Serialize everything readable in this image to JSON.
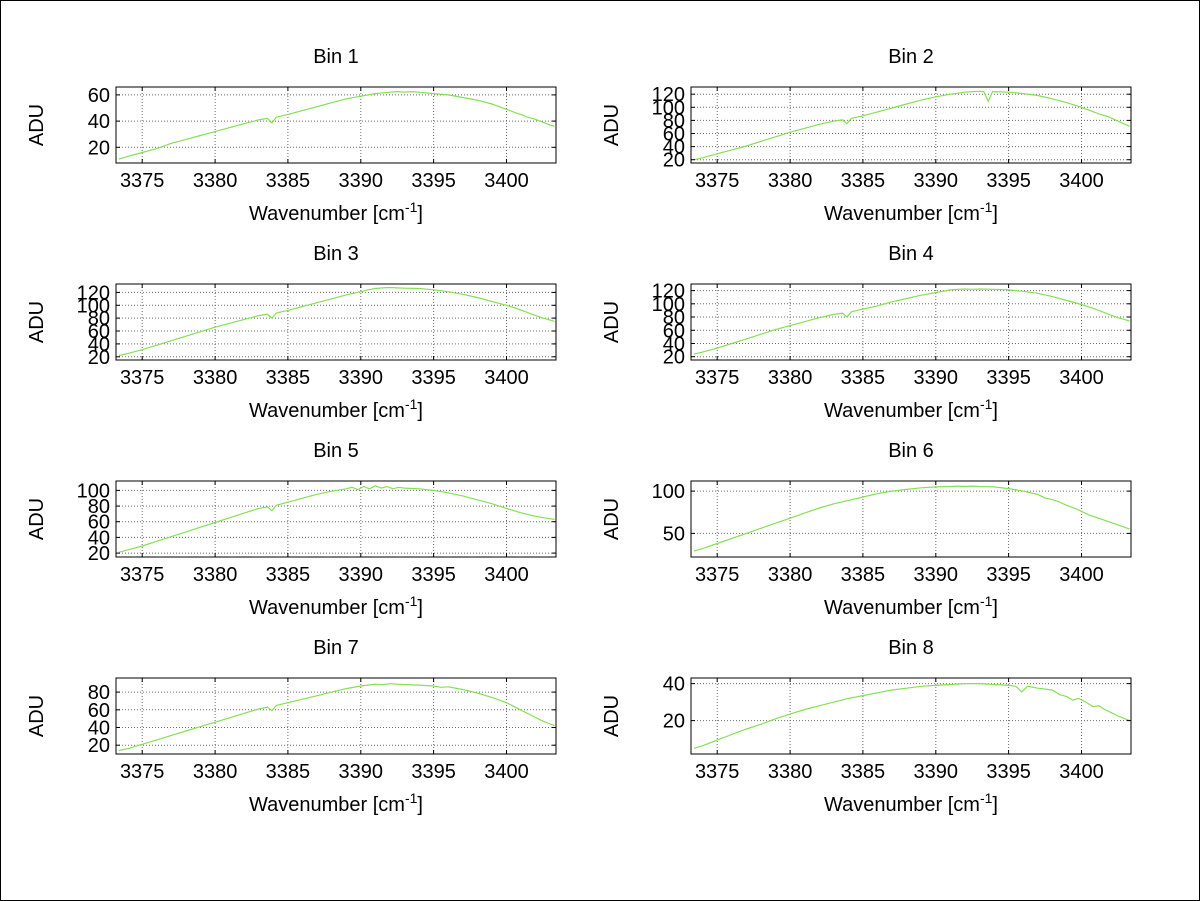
{
  "figure": {
    "background": "#ffffff",
    "border_color": "#000000",
    "axis_color": "#000000",
    "grid_color": "#6b6b6b",
    "line_color": "#86df55",
    "text_color": "#000000"
  },
  "chart_data": [
    {
      "type": "line",
      "title": "Bin 1",
      "ylabel": "ADU",
      "xlabel": "Wavenumber [cm⁻¹]",
      "xlabel_prefix": "Wavenumber [cm",
      "xlabel_sup": "-1",
      "xlabel_suffix": "]",
      "xlim": [
        3373.2,
        3403.4
      ],
      "ylim": [
        8,
        66
      ],
      "xticks": [
        3375,
        3380,
        3385,
        3390,
        3395,
        3400
      ],
      "yticks": [
        20,
        40,
        60
      ],
      "grid": true,
      "x": [
        3373.4,
        3374,
        3375,
        3376,
        3377,
        3378,
        3379,
        3380,
        3381,
        3382,
        3383,
        3383.6,
        3383.9,
        3384.2,
        3385,
        3386,
        3387,
        3388,
        3389,
        3390,
        3390.5,
        3391,
        3391.5,
        3392,
        3392.5,
        3393,
        3393.5,
        3394,
        3394.5,
        3395,
        3396,
        3397,
        3398,
        3399,
        3400,
        3400.7,
        3401,
        3401.4,
        3401.8,
        3402.3,
        3403,
        3403.3
      ],
      "y": [
        11,
        13,
        16,
        19,
        23,
        26,
        29,
        32,
        35,
        38,
        41,
        42,
        38.5,
        43,
        45,
        48,
        51,
        54,
        57,
        59,
        60,
        61,
        61.5,
        62,
        62.5,
        62,
        62.5,
        62,
        61.5,
        61,
        60,
        58,
        56,
        53,
        49,
        46,
        45,
        43,
        42,
        40,
        37,
        36
      ]
    },
    {
      "type": "line",
      "title": "Bin 2",
      "ylabel": "ADU",
      "xlabel": "Wavenumber [cm⁻¹]",
      "xlabel_prefix": "Wavenumber [cm",
      "xlabel_sup": "-1",
      "xlabel_suffix": "]",
      "xlim": [
        3373.2,
        3403.4
      ],
      "ylim": [
        15,
        131
      ],
      "xticks": [
        3375,
        3380,
        3385,
        3390,
        3395,
        3400
      ],
      "yticks": [
        20,
        40,
        60,
        80,
        100,
        120
      ],
      "grid": true,
      "x": [
        3373.4,
        3374,
        3375,
        3376,
        3377,
        3378,
        3379,
        3380,
        3381,
        3382,
        3383,
        3383.6,
        3383.9,
        3384.2,
        3385,
        3386,
        3387,
        3388,
        3389,
        3390,
        3391,
        3392,
        3392.5,
        3393,
        3393.3,
        3393.6,
        3393.9,
        3394.5,
        3395,
        3396,
        3397,
        3398,
        3399,
        3400,
        3400.7,
        3401.2,
        3401.8,
        3402.4,
        3403,
        3403.3
      ],
      "y": [
        20,
        23,
        29,
        35,
        41,
        48,
        55,
        62,
        68,
        74,
        79,
        81,
        75,
        83,
        87,
        93,
        99,
        105,
        111,
        116,
        120,
        123,
        124,
        124.5,
        124,
        109,
        124,
        123.5,
        123,
        121,
        118,
        113,
        107,
        100,
        94,
        90,
        86,
        80,
        74,
        71
      ]
    },
    {
      "type": "line",
      "title": "Bin 3",
      "ylabel": "ADU",
      "xlabel": "Wavenumber [cm⁻¹]",
      "xlabel_prefix": "Wavenumber [cm",
      "xlabel_sup": "-1",
      "xlabel_suffix": "]",
      "xlim": [
        3373.2,
        3403.4
      ],
      "ylim": [
        15,
        133
      ],
      "xticks": [
        3375,
        3380,
        3385,
        3390,
        3395,
        3400
      ],
      "yticks": [
        20,
        40,
        60,
        80,
        100,
        120
      ],
      "grid": true,
      "x": [
        3373.4,
        3374,
        3375,
        3376,
        3377,
        3378,
        3379,
        3380,
        3381,
        3382,
        3383,
        3383.6,
        3383.9,
        3384.2,
        3385,
        3386,
        3387,
        3388,
        3389,
        3390,
        3390.5,
        3391,
        3391.5,
        3392,
        3392.5,
        3393,
        3394,
        3395,
        3396,
        3397,
        3398,
        3399,
        3400,
        3400.7,
        3401.3,
        3401.9,
        3402.5,
        3403,
        3403.3
      ],
      "y": [
        22,
        25,
        31,
        38,
        45,
        52,
        59,
        66,
        72,
        78,
        84,
        86,
        80,
        88,
        92,
        98,
        104,
        110,
        116,
        121,
        124,
        126,
        127,
        127.5,
        127,
        126.5,
        126,
        124,
        121,
        117,
        112,
        106,
        100,
        95,
        90,
        85,
        80,
        77,
        75
      ]
    },
    {
      "type": "line",
      "title": "Bin 4",
      "ylabel": "ADU",
      "xlabel": "Wavenumber [cm⁻¹]",
      "xlabel_prefix": "Wavenumber [cm",
      "xlabel_sup": "-1",
      "xlabel_suffix": "]",
      "xlim": [
        3373.2,
        3403.4
      ],
      "ylim": [
        15,
        130
      ],
      "xticks": [
        3375,
        3380,
        3385,
        3390,
        3395,
        3400
      ],
      "yticks": [
        20,
        40,
        60,
        80,
        100,
        120
      ],
      "grid": true,
      "x": [
        3373.4,
        3374,
        3375,
        3376,
        3377,
        3378,
        3379,
        3380,
        3381,
        3382,
        3383,
        3383.6,
        3383.9,
        3384.2,
        3385,
        3386,
        3387,
        3388,
        3389,
        3390,
        3390.5,
        3391,
        3391.5,
        3392,
        3392.5,
        3393,
        3394,
        3395,
        3396,
        3397,
        3398,
        3399,
        3400,
        3400.7,
        3401.3,
        3401.9,
        3402.5,
        3403,
        3403.3
      ],
      "y": [
        24,
        27,
        33,
        40,
        47,
        54,
        61,
        67,
        73,
        79,
        84,
        86,
        80,
        88,
        92,
        97,
        103,
        108,
        113,
        117,
        119,
        121,
        122,
        122.5,
        122,
        122.5,
        122,
        121,
        119,
        116,
        111,
        105,
        99,
        94,
        89,
        84,
        79,
        76,
        74
      ]
    },
    {
      "type": "line",
      "title": "Bin 5",
      "ylabel": "ADU",
      "xlabel": "Wavenumber [cm⁻¹]",
      "xlabel_prefix": "Wavenumber [cm",
      "xlabel_sup": "-1",
      "xlabel_suffix": "]",
      "xlim": [
        3373.2,
        3403.4
      ],
      "ylim": [
        15,
        112
      ],
      "xticks": [
        3375,
        3380,
        3385,
        3390,
        3395,
        3400
      ],
      "yticks": [
        20,
        40,
        60,
        80,
        100
      ],
      "grid": true,
      "x": [
        3373.4,
        3374,
        3375,
        3376,
        3377,
        3378,
        3379,
        3380,
        3381,
        3382,
        3383,
        3383.6,
        3383.9,
        3384.2,
        3385,
        3386,
        3387,
        3388,
        3389,
        3389.4,
        3389.8,
        3390.2,
        3390.6,
        3391,
        3391.4,
        3391.8,
        3392.2,
        3392.6,
        3393,
        3394,
        3395,
        3396,
        3397,
        3398,
        3399,
        3400,
        3400.7,
        3401.3,
        3402,
        3402.6,
        3403.3
      ],
      "y": [
        21,
        24,
        29,
        35,
        41,
        47,
        53,
        59,
        65,
        71,
        77,
        79,
        74,
        81,
        85,
        90,
        95,
        99,
        102,
        104,
        101,
        105,
        102,
        106,
        103,
        105,
        102,
        104,
        103,
        102,
        100,
        97,
        93,
        88,
        83,
        77,
        73,
        70,
        67,
        65,
        63
      ]
    },
    {
      "type": "line",
      "title": "Bin 6",
      "ylabel": "ADU",
      "xlabel": "Wavenumber [cm⁻¹]",
      "xlabel_prefix": "Wavenumber [cm",
      "xlabel_sup": "-1",
      "xlabel_suffix": "]",
      "xlim": [
        3373.2,
        3403.4
      ],
      "ylim": [
        22,
        112
      ],
      "xticks": [
        3375,
        3380,
        3385,
        3390,
        3395,
        3400
      ],
      "yticks": [
        50,
        100
      ],
      "grid": true,
      "x": [
        3373.4,
        3374,
        3375,
        3376,
        3377,
        3378,
        3379,
        3380,
        3381,
        3382,
        3383,
        3384,
        3385,
        3386,
        3387,
        3388,
        3389,
        3390,
        3391,
        3391.5,
        3392,
        3392.5,
        3393,
        3394,
        3395,
        3396,
        3396.5,
        3397,
        3397.5,
        3398,
        3398.5,
        3399,
        3399.5,
        3400,
        3400.5,
        3401,
        3401.5,
        3402,
        3402.5,
        3403,
        3403.3
      ],
      "y": [
        29,
        32,
        38,
        44,
        50,
        56,
        62,
        68,
        74,
        80,
        85,
        89,
        93,
        97,
        100,
        102,
        104,
        105,
        105.5,
        106,
        105.5,
        106,
        105.5,
        105,
        103,
        100,
        98,
        96,
        92,
        90,
        87,
        83,
        80,
        76,
        72,
        69,
        66,
        63,
        60,
        57,
        55
      ]
    },
    {
      "type": "line",
      "title": "Bin 7",
      "ylabel": "ADU",
      "xlabel": "Wavenumber [cm⁻¹]",
      "xlabel_prefix": "Wavenumber [cm",
      "xlabel_sup": "-1",
      "xlabel_suffix": "]",
      "xlim": [
        3373.2,
        3403.4
      ],
      "ylim": [
        10,
        96
      ],
      "xticks": [
        3375,
        3380,
        3385,
        3390,
        3395,
        3400
      ],
      "yticks": [
        20,
        40,
        60,
        80
      ],
      "grid": true,
      "x": [
        3373.4,
        3374,
        3375,
        3376,
        3377,
        3378,
        3379,
        3380,
        3381,
        3382,
        3383,
        3383.6,
        3383.9,
        3384.2,
        3385,
        3386,
        3387,
        3388,
        3389,
        3390,
        3390.5,
        3391,
        3391.5,
        3392,
        3392.5,
        3393,
        3394,
        3395,
        3395.5,
        3396,
        3397,
        3398,
        3399,
        3400,
        3400.6,
        3401.2,
        3401.8,
        3402.4,
        3403,
        3403.3
      ],
      "y": [
        14,
        16,
        21,
        26,
        31,
        36,
        41,
        46,
        51,
        56,
        61,
        63,
        59,
        65,
        68,
        72,
        76,
        80,
        84,
        87,
        88,
        89,
        88.5,
        89.5,
        89,
        88.5,
        88,
        87,
        85.5,
        86,
        83,
        79,
        74,
        68,
        63,
        58,
        53,
        48,
        44,
        42
      ]
    },
    {
      "type": "line",
      "title": "Bin 8",
      "ylabel": "ADU",
      "xlabel": "Wavenumber [cm⁻¹]",
      "xlabel_prefix": "Wavenumber [cm",
      "xlabel_sup": "-1",
      "xlabel_suffix": "]",
      "xlim": [
        3373.2,
        3403.4
      ],
      "ylim": [
        2,
        43
      ],
      "xticks": [
        3375,
        3380,
        3385,
        3390,
        3395,
        3400
      ],
      "yticks": [
        20,
        40
      ],
      "grid": true,
      "x": [
        3373.4,
        3374,
        3375,
        3376,
        3377,
        3378,
        3379,
        3380,
        3381,
        3382,
        3383,
        3384,
        3385,
        3386,
        3387,
        3388,
        3389,
        3390,
        3391,
        3392,
        3393,
        3394,
        3395,
        3395.5,
        3395.9,
        3396.3,
        3397,
        3398,
        3398.5,
        3399,
        3399.4,
        3399.8,
        3400.3,
        3400.8,
        3401.2,
        3401.6,
        3402,
        3402.5,
        3403,
        3403.3
      ],
      "y": [
        5,
        6.5,
        9.5,
        12.5,
        15.5,
        18,
        21,
        23.5,
        26,
        28,
        30,
        32,
        33.5,
        35,
        36.5,
        37.5,
        38.5,
        39,
        39.5,
        40,
        40,
        39.5,
        39,
        38.5,
        35.5,
        38.5,
        37.5,
        36.5,
        34,
        33,
        31,
        32,
        30,
        27.5,
        28,
        26,
        24.5,
        22.5,
        21,
        20
      ]
    }
  ]
}
